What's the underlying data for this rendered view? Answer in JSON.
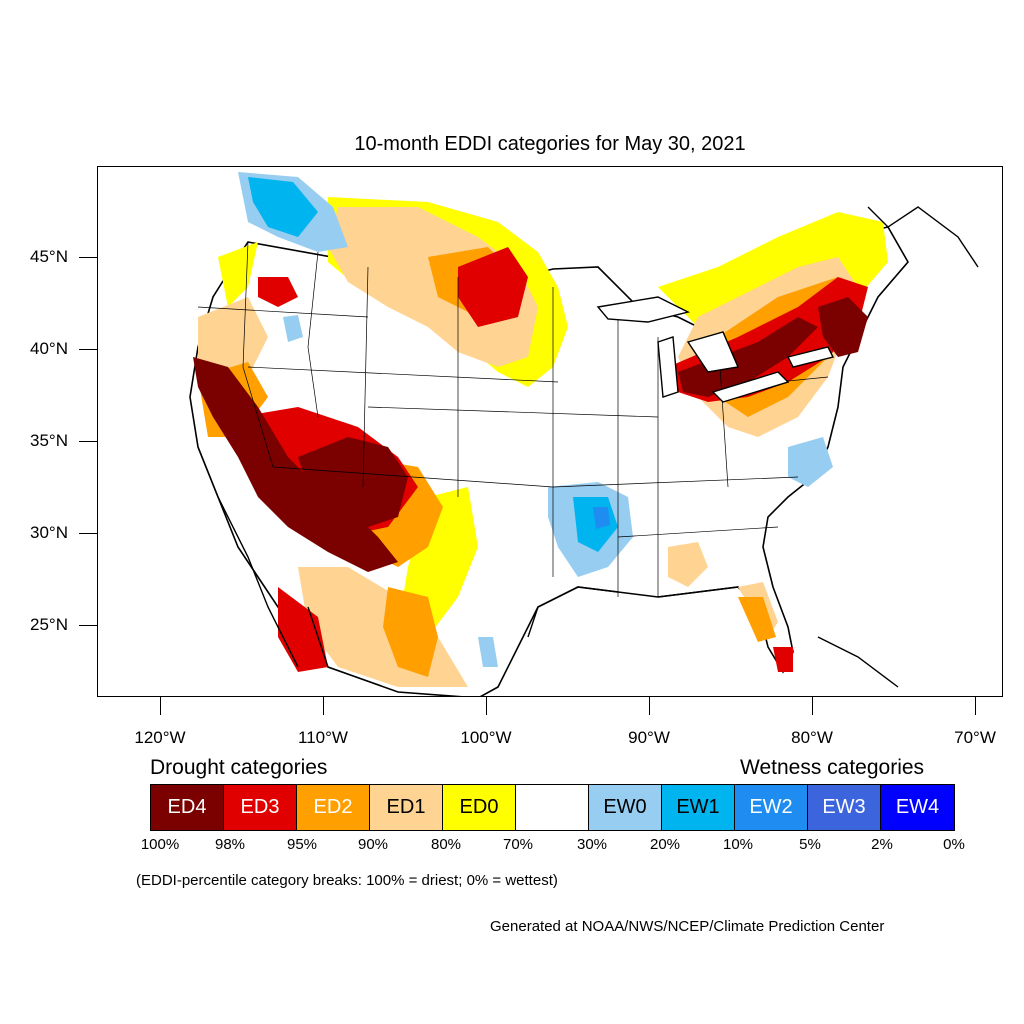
{
  "title": "10-month EDDI categories for May 30, 2021",
  "lat_labels": [
    "45°N",
    "40°N",
    "35°N",
    "30°N",
    "25°N"
  ],
  "lon_labels": [
    "120°W",
    "110°W",
    "100°W",
    "90°W",
    "80°W",
    "70°W"
  ],
  "drought_heading": "Drought categories",
  "wetness_heading": "Wetness categories",
  "legend": [
    {
      "label": "ED4",
      "color": "#7b0000",
      "text_color": "#ffffff"
    },
    {
      "label": "ED3",
      "color": "#e00000",
      "text_color": "#ffffff"
    },
    {
      "label": "ED2",
      "color": "#ff9f00",
      "text_color": "#ffffff"
    },
    {
      "label": "ED1",
      "color": "#ffd391",
      "text_color": "#000000"
    },
    {
      "label": "ED0",
      "color": "#ffff00",
      "text_color": "#000000"
    },
    {
      "label": "",
      "color": "#ffffff",
      "text_color": "#000000"
    },
    {
      "label": "EW0",
      "color": "#97cdf0",
      "text_color": "#000000"
    },
    {
      "label": "EW1",
      "color": "#00b4f0",
      "text_color": "#000000"
    },
    {
      "label": "EW2",
      "color": "#1e8cf0",
      "text_color": "#ffffff"
    },
    {
      "label": "EW3",
      "color": "#3c64dc",
      "text_color": "#ffffff"
    },
    {
      "label": "EW4",
      "color": "#0000ff",
      "text_color": "#ffffff"
    }
  ],
  "percent_breaks": [
    "100%",
    "98%",
    "95%",
    "90%",
    "80%",
    "70%",
    "30%",
    "20%",
    "10%",
    "5%",
    "2%",
    "0%"
  ],
  "note": "(EDDI-percentile category breaks: 100% = driest; 0% = wettest)",
  "credit": "Generated at NOAA/NWS/NCEP/Climate Prediction Center"
}
